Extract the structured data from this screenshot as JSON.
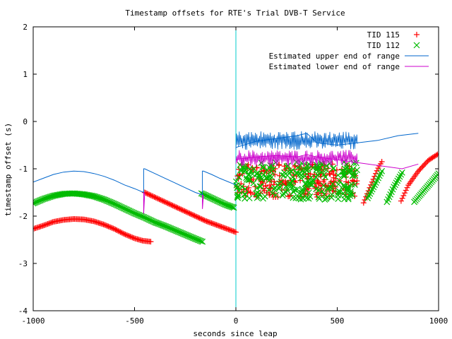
{
  "chart_data": {
    "type": "scatter",
    "title": "Timestamp offsets for RTE's Trial DVB-T Service",
    "xlabel": "seconds since leap",
    "ylabel": "timestamp offset (s)",
    "xlim": [
      -1000,
      1000
    ],
    "ylim": [
      -4,
      2
    ],
    "xticks": [
      -1000,
      -500,
      0,
      500,
      1000
    ],
    "yticks": [
      -4,
      -3,
      -2,
      -1,
      0,
      1,
      2
    ],
    "grid": false,
    "legend_position": "top-right",
    "leap_line_x": 0,
    "leap_line_color": "#00cccc",
    "series": [
      {
        "name": "TID 115",
        "kind": "points",
        "marker": "plus",
        "color": "#ff0000",
        "segments": [
          [
            [
              -1000,
              -2.27
            ],
            [
              -950,
              -2.2
            ],
            [
              -900,
              -2.12
            ],
            [
              -850,
              -2.08
            ],
            [
              -800,
              -2.06
            ],
            [
              -750,
              -2.07
            ],
            [
              -700,
              -2.11
            ],
            [
              -650,
              -2.18
            ],
            [
              -600,
              -2.27
            ],
            [
              -550,
              -2.38
            ],
            [
              -500,
              -2.47
            ],
            [
              -460,
              -2.52
            ],
            [
              -420,
              -2.54
            ]
          ],
          [
            [
              -450,
              -1.5
            ],
            [
              -400,
              -1.6
            ],
            [
              -350,
              -1.7
            ],
            [
              -300,
              -1.8
            ],
            [
              -250,
              -1.9
            ],
            [
              -200,
              -2.0
            ],
            [
              -150,
              -2.1
            ],
            [
              -100,
              -2.18
            ],
            [
              -50,
              -2.26
            ],
            [
              0,
              -2.34
            ]
          ],
          [
            [
              630,
              -1.72
            ],
            [
              660,
              -1.4
            ],
            [
              700,
              -1.0
            ],
            [
              720,
              -0.85
            ]
          ],
          [
            [
              815,
              -1.68
            ],
            [
              850,
              -1.35
            ],
            [
              900,
              -1.05
            ],
            [
              950,
              -0.82
            ],
            [
              1000,
              -0.68
            ]
          ]
        ]
      },
      {
        "name": "TID 112",
        "kind": "points",
        "marker": "cross",
        "color": "#00bb00",
        "segments": [
          [
            [
              -1000,
              -1.73
            ],
            [
              -950,
              -1.64
            ],
            [
              -900,
              -1.57
            ],
            [
              -850,
              -1.53
            ],
            [
              -800,
              -1.52
            ],
            [
              -750,
              -1.54
            ],
            [
              -700,
              -1.58
            ],
            [
              -650,
              -1.65
            ],
            [
              -600,
              -1.74
            ],
            [
              -550,
              -1.84
            ],
            [
              -500,
              -1.94
            ],
            [
              -450,
              -2.03
            ],
            [
              -400,
              -2.13
            ],
            [
              -350,
              -2.21
            ],
            [
              -300,
              -2.3
            ],
            [
              -250,
              -2.39
            ],
            [
              -200,
              -2.48
            ],
            [
              -165,
              -2.54
            ]
          ],
          [
            [
              -170,
              -1.52
            ],
            [
              -130,
              -1.6
            ],
            [
              -90,
              -1.68
            ],
            [
              -50,
              -1.76
            ],
            [
              -10,
              -1.82
            ]
          ],
          [
            [
              650,
              -1.62
            ],
            [
              690,
              -1.3
            ],
            [
              720,
              -1.05
            ]
          ],
          [
            [
              745,
              -1.7
            ],
            [
              780,
              -1.38
            ],
            [
              820,
              -1.08
            ]
          ],
          [
            [
              880,
              -1.7
            ],
            [
              930,
              -1.45
            ],
            [
              980,
              -1.2
            ],
            [
              1000,
              -1.1
            ]
          ]
        ]
      },
      {
        "name": "Estimated upper end of range",
        "kind": "line",
        "color": "#0066cc",
        "segments": [
          [
            [
              -1000,
              -1.28
            ],
            [
              -950,
              -1.2
            ],
            [
              -900,
              -1.12
            ],
            [
              -850,
              -1.07
            ],
            [
              -800,
              -1.05
            ],
            [
              -750,
              -1.06
            ],
            [
              -700,
              -1.1
            ],
            [
              -650,
              -1.16
            ],
            [
              -600,
              -1.24
            ],
            [
              -550,
              -1.34
            ],
            [
              -500,
              -1.42
            ],
            [
              -455,
              -1.5
            ],
            [
              -455,
              -1.0
            ],
            [
              -450,
              -1.0
            ],
            [
              -400,
              -1.1
            ],
            [
              -350,
              -1.2
            ],
            [
              -300,
              -1.3
            ],
            [
              -250,
              -1.4
            ],
            [
              -200,
              -1.5
            ],
            [
              -165,
              -1.55
            ],
            [
              -165,
              -1.05
            ],
            [
              -160,
              -1.05
            ],
            [
              -120,
              -1.12
            ],
            [
              -80,
              -1.2
            ],
            [
              -40,
              -1.27
            ],
            [
              0,
              -1.34
            ]
          ],
          [
            [
              0,
              -0.55
            ],
            [
              100,
              -0.42
            ],
            [
              200,
              -0.36
            ],
            [
              300,
              -0.3
            ],
            [
              350,
              -0.25
            ],
            [
              400,
              -0.45
            ],
            [
              500,
              -0.5
            ],
            [
              600,
              -0.45
            ],
            [
              700,
              -0.4
            ],
            [
              800,
              -0.3
            ],
            [
              900,
              -0.25
            ]
          ]
        ]
      },
      {
        "name": "Estimated lower end of range",
        "kind": "line",
        "color": "#cc00cc",
        "segments": [
          [
            [
              -455,
              -1.5
            ],
            [
              -455,
              -1.95
            ],
            [
              -450,
              -1.5
            ]
          ],
          [
            [
              -165,
              -1.55
            ],
            [
              -165,
              -1.85
            ],
            [
              -160,
              -1.55
            ]
          ],
          [
            [
              0,
              -0.8
            ],
            [
              100,
              -0.75
            ],
            [
              200,
              -0.72
            ],
            [
              300,
              -0.75
            ],
            [
              350,
              -0.7
            ],
            [
              400,
              -0.75
            ],
            [
              820,
              -1.0
            ],
            [
              900,
              -0.9
            ]
          ]
        ]
      }
    ],
    "dense_band": {
      "x_range": [
        0,
        600
      ],
      "series": [
        {
          "name": "TID 115",
          "y_low": -1.6,
          "y_high": -0.9
        },
        {
          "name": "TID 112",
          "y_low": -1.65,
          "y_high": -0.85
        },
        {
          "name": "Estimated upper end of range",
          "y_low": -0.6,
          "y_high": -0.2
        },
        {
          "name": "Estimated lower end of range",
          "y_low": -0.95,
          "y_high": -0.6
        }
      ]
    }
  }
}
